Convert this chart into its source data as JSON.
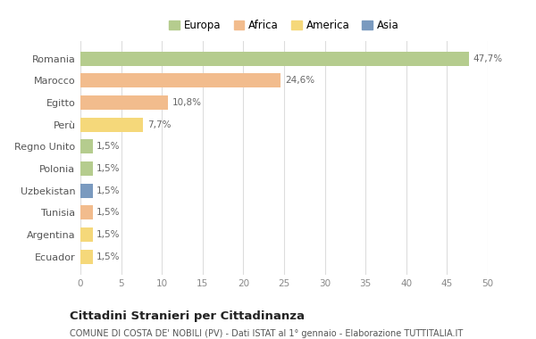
{
  "countries": [
    "Romania",
    "Marocco",
    "Egitto",
    "Perù",
    "Regno Unito",
    "Polonia",
    "Uzbekistan",
    "Tunisia",
    "Argentina",
    "Ecuador"
  ],
  "values": [
    47.7,
    24.6,
    10.8,
    7.7,
    1.5,
    1.5,
    1.5,
    1.5,
    1.5,
    1.5
  ],
  "labels": [
    "47,7%",
    "24,6%",
    "10,8%",
    "7,7%",
    "1,5%",
    "1,5%",
    "1,5%",
    "1,5%",
    "1,5%",
    "1,5%"
  ],
  "colors": [
    "#b5cc8e",
    "#f2bc8d",
    "#f2bc8d",
    "#f5d87a",
    "#b5cc8e",
    "#b5cc8e",
    "#7a9abf",
    "#f2bc8d",
    "#f5d87a",
    "#f5d87a"
  ],
  "legend_labels": [
    "Europa",
    "Africa",
    "America",
    "Asia"
  ],
  "legend_colors": [
    "#b5cc8e",
    "#f2bc8d",
    "#f5d87a",
    "#7a9abf"
  ],
  "xlim": [
    0,
    50
  ],
  "xticks": [
    0,
    5,
    10,
    15,
    20,
    25,
    30,
    35,
    40,
    45,
    50
  ],
  "title": "Cittadini Stranieri per Cittadinanza",
  "subtitle": "COMUNE DI COSTA DE' NOBILI (PV) - Dati ISTAT al 1° gennaio - Elaborazione TUTTITALIA.IT",
  "background_color": "#ffffff",
  "grid_color": "#dddddd"
}
